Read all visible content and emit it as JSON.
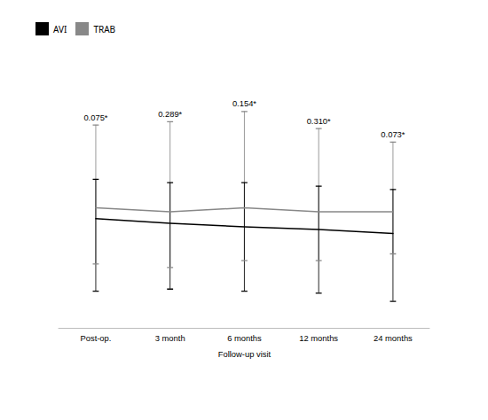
{
  "chart_data": {
    "type": "line",
    "xlabel": "Follow-up visit",
    "categories": [
      "Post-op.",
      "3 month",
      "6 months",
      "12 months",
      "24 months"
    ],
    "series": [
      {
        "name": "AVI",
        "color": "#000000",
        "values": [
          14.2,
          13.5,
          13.0,
          12.6,
          12.0
        ],
        "ci_upper": [
          20.0,
          19.5,
          19.5,
          19.0,
          18.5
        ],
        "ci_lower": [
          3.5,
          3.8,
          3.5,
          3.2,
          2.0
        ]
      },
      {
        "name": "TRAB",
        "color": "#888888",
        "values": [
          15.8,
          15.2,
          15.8,
          15.2,
          15.2
        ],
        "ci_upper": [
          28.0,
          28.5,
          30.0,
          27.5,
          25.5
        ],
        "ci_lower": [
          7.5,
          7.0,
          8.0,
          8.0,
          9.0
        ]
      }
    ],
    "annotations": [
      {
        "x": "Post-op.",
        "text": "0.075*"
      },
      {
        "x": "3 month",
        "text": "0.289*"
      },
      {
        "x": "6 months",
        "text": "0.154*"
      },
      {
        "x": "12 months",
        "text": "0.310*"
      },
      {
        "x": "24 months",
        "text": "0.073*"
      }
    ],
    "ylim": [
      -2,
      36
    ],
    "grid": false,
    "legend": "top",
    "tick_labels": "x"
  }
}
